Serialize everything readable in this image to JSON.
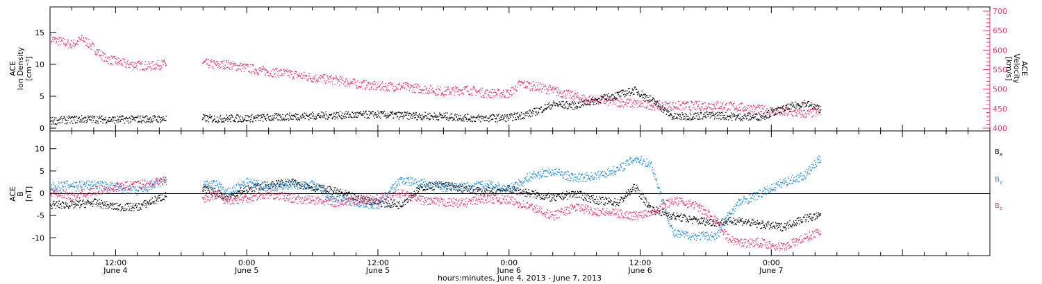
{
  "colors": {
    "black": "#000000",
    "red": "#e8336d",
    "blue": "#1a8ce0"
  },
  "xaxis": {
    "title": "hours:minutes, June  4, 2013 - June  7, 2013",
    "range_hours": [
      0,
      86
    ],
    "ticks": [
      {
        "hour": 6,
        "time": "12:00",
        "date": "June 4"
      },
      {
        "hour": 18,
        "time": "0:00",
        "date": "June 5"
      },
      {
        "hour": 30,
        "time": "12:00",
        "date": "June 5"
      },
      {
        "hour": 42,
        "time": "0:00",
        "date": "June 6"
      },
      {
        "hour": 54,
        "time": "12:00",
        "date": "June 6"
      },
      {
        "hour": 66,
        "time": "0:00",
        "date": "June 7"
      }
    ]
  },
  "chart_data": [
    {
      "type": "scatter",
      "panel": "top",
      "ylabel_lines": [
        "ACE",
        "Ion Density",
        "[cm⁻³]"
      ],
      "ylim": [
        0,
        19
      ],
      "yticks": [
        0,
        5,
        10,
        15
      ],
      "y2label_lines": [
        "ACE",
        "Velocity",
        "[km/s]"
      ],
      "y2lim": [
        400,
        700
      ],
      "y2ticks": [
        400,
        450,
        500,
        550,
        600,
        650,
        700
      ],
      "series": [
        {
          "color": "#000000",
          "axis": "left",
          "t": [
            0,
            3,
            6,
            9,
            10.5,
            14,
            15.5,
            16,
            18,
            21,
            24,
            27,
            30,
            33,
            36,
            39,
            42,
            44,
            46,
            48,
            50,
            52,
            53.5,
            55,
            57,
            59,
            61,
            63,
            65,
            67,
            69,
            70.5
          ],
          "v": [
            1.2,
            1.5,
            1.4,
            1.5,
            1.5,
            1.6,
            1.5,
            1.6,
            1.6,
            1.8,
            2.0,
            2.1,
            2.2,
            2.0,
            1.9,
            1.6,
            1.7,
            2.4,
            3.8,
            3.6,
            4.5,
            5.3,
            6.0,
            4.5,
            1.8,
            2.0,
            2.1,
            1.8,
            1.9,
            3.0,
            4.0,
            3.0
          ]
        },
        {
          "color": "#e8336d",
          "axis": "right",
          "t": [
            0,
            2,
            3,
            5,
            7,
            9,
            10.5,
            14,
            15.5,
            16,
            18,
            20,
            22,
            24,
            26,
            28,
            30,
            32,
            34,
            36,
            38,
            40,
            42,
            43,
            45,
            47,
            49,
            51,
            53,
            55,
            57,
            59,
            61,
            63,
            65,
            67,
            69,
            70.5
          ],
          "v": [
            630,
            615,
            630,
            580,
            565,
            560,
            565,
            568,
            562,
            565,
            555,
            545,
            540,
            530,
            525,
            515,
            508,
            508,
            502,
            495,
            500,
            490,
            490,
            515,
            505,
            490,
            475,
            470,
            465,
            460,
            458,
            458,
            460,
            455,
            448,
            442,
            438,
            442
          ]
        }
      ]
    },
    {
      "type": "scatter",
      "panel": "bottom",
      "ylabel_lines": [
        "ACE",
        "B",
        "[nT]"
      ],
      "ylim": [
        -14,
        14
      ],
      "yticks": [
        -10,
        -5,
        0,
        5,
        10
      ],
      "legend": [
        {
          "label": "B",
          "sub": "x",
          "color": "#000000"
        },
        {
          "label": "B",
          "sub": "y",
          "color": "#1a8ce0"
        },
        {
          "label": "B",
          "sub": "z",
          "color": "#e8336d"
        }
      ],
      "series": [
        {
          "name": "Bx",
          "color": "#000000",
          "t": [
            0,
            2,
            4,
            6,
            8,
            10.5,
            14,
            15.5,
            16,
            18,
            20,
            22,
            24,
            26,
            28,
            30,
            32,
            34,
            36,
            38,
            40,
            42,
            44,
            46,
            48,
            50,
            52,
            53.5,
            55,
            57,
            59,
            61,
            63,
            65,
            67,
            69,
            70.5
          ],
          "v": [
            -2.5,
            -2.5,
            -2.0,
            -3.0,
            -3.0,
            -0.5,
            1.0,
            0,
            -1.0,
            1.0,
            2.0,
            2.5,
            1.5,
            0.5,
            -1.0,
            -2.0,
            -2.5,
            1.5,
            2.0,
            1.0,
            0.5,
            1.0,
            0,
            -1.0,
            0,
            -1.5,
            -2.0,
            1.5,
            -3.5,
            -5.0,
            -6.0,
            -6.5,
            -6.0,
            -7.0,
            -7.5,
            -5.5,
            -5.0
          ]
        },
        {
          "name": "By",
          "color": "#1a8ce0",
          "t": [
            0,
            2,
            4,
            6,
            8,
            10.5,
            14,
            15.5,
            16,
            18,
            20,
            22,
            24,
            26,
            28,
            30,
            32,
            34,
            36,
            38,
            40,
            42,
            44,
            46,
            48,
            50,
            52,
            53.5,
            55,
            57,
            59,
            61,
            62,
            63,
            65,
            67,
            69,
            70.5
          ],
          "v": [
            1.5,
            2.0,
            2.0,
            1.5,
            0.5,
            3.0,
            2.0,
            2.0,
            0,
            2.5,
            1.5,
            2.0,
            2.0,
            -1.0,
            -2.0,
            -2.5,
            3.0,
            2.5,
            1.5,
            1.5,
            2.0,
            1.0,
            4.0,
            5.0,
            3.5,
            4.0,
            5.5,
            8.0,
            6.5,
            -9.0,
            -9.5,
            -9.5,
            -5.0,
            -2.0,
            0,
            2.5,
            4.0,
            8.0
          ]
        },
        {
          "name": "Bz",
          "color": "#e8336d",
          "t": [
            0,
            2,
            4,
            6,
            8,
            10.5,
            14,
            15.5,
            16,
            18,
            20,
            22,
            24,
            26,
            28,
            30,
            32,
            34,
            36,
            38,
            40,
            42,
            44,
            46,
            48,
            50,
            52,
            53.5,
            55,
            57,
            59,
            61,
            62,
            63,
            65,
            67,
            69,
            70.5
          ],
          "v": [
            0.5,
            -0.5,
            0.5,
            1.5,
            2.0,
            3.0,
            -1.0,
            0,
            -1.5,
            -1.0,
            0,
            -1.0,
            -1.5,
            -2.0,
            -1.5,
            -1.0,
            0,
            -1.5,
            -2.0,
            -2.0,
            -1.0,
            -1.5,
            -3.0,
            -5.0,
            -3.0,
            -4.0,
            -4.5,
            -5.0,
            -4.0,
            -1.5,
            -2.5,
            -6.0,
            -10.0,
            -11.0,
            -11.0,
            -12.0,
            -10.0,
            -8.5
          ]
        }
      ]
    }
  ]
}
